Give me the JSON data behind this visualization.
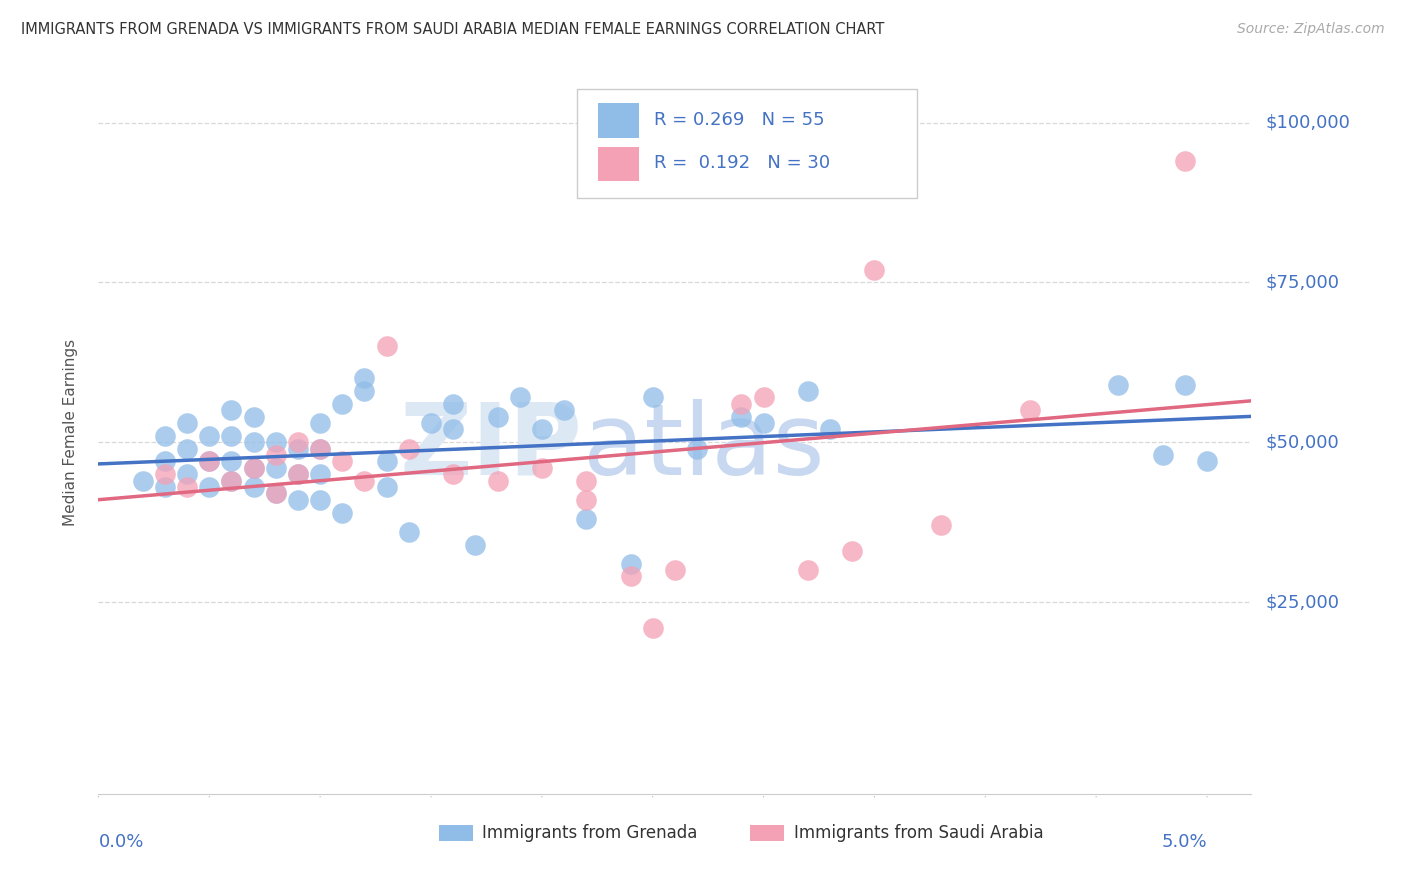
{
  "title": "IMMIGRANTS FROM GRENADA VS IMMIGRANTS FROM SAUDI ARABIA MEDIAN FEMALE EARNINGS CORRELATION CHART",
  "source": "Source: ZipAtlas.com",
  "ylabel": "Median Female Earnings",
  "ytick_values": [
    25000,
    50000,
    75000,
    100000
  ],
  "ytick_labels": [
    "$25,000",
    "$50,000",
    "$75,000",
    "$100,000"
  ],
  "ylim": [
    -5000,
    108000
  ],
  "xlim": [
    0.0,
    0.052
  ],
  "color_grenada": "#90bce8",
  "color_saudi": "#f4a0b5",
  "color_trendline_grenada": "#4472c4",
  "color_trendline_saudi": "#e06880",
  "color_axis_labels": "#4472c4",
  "color_title": "#333333",
  "background_color": "#ffffff",
  "grid_color": "#d8d8d8",
  "watermark_color": "#dce8f7",
  "grenada_x": [
    0.002,
    0.003,
    0.003,
    0.003,
    0.004,
    0.004,
    0.004,
    0.005,
    0.005,
    0.005,
    0.006,
    0.006,
    0.006,
    0.006,
    0.007,
    0.007,
    0.007,
    0.007,
    0.008,
    0.008,
    0.008,
    0.009,
    0.009,
    0.009,
    0.01,
    0.01,
    0.01,
    0.01,
    0.011,
    0.011,
    0.012,
    0.012,
    0.013,
    0.013,
    0.014,
    0.015,
    0.016,
    0.016,
    0.017,
    0.018,
    0.019,
    0.02,
    0.021,
    0.022,
    0.024,
    0.025,
    0.027,
    0.029,
    0.03,
    0.032,
    0.033,
    0.046,
    0.048,
    0.049,
    0.05
  ],
  "grenada_y": [
    44000,
    43000,
    47000,
    51000,
    45000,
    49000,
    53000,
    43000,
    47000,
    51000,
    44000,
    47000,
    51000,
    55000,
    43000,
    46000,
    50000,
    54000,
    42000,
    46000,
    50000,
    41000,
    45000,
    49000,
    41000,
    45000,
    49000,
    53000,
    39000,
    56000,
    58000,
    60000,
    43000,
    47000,
    36000,
    53000,
    52000,
    56000,
    34000,
    54000,
    57000,
    52000,
    55000,
    38000,
    31000,
    57000,
    49000,
    54000,
    53000,
    58000,
    52000,
    59000,
    48000,
    59000,
    47000
  ],
  "saudi_x": [
    0.003,
    0.004,
    0.005,
    0.006,
    0.007,
    0.008,
    0.008,
    0.009,
    0.009,
    0.01,
    0.011,
    0.012,
    0.013,
    0.014,
    0.016,
    0.018,
    0.02,
    0.022,
    0.022,
    0.024,
    0.025,
    0.026,
    0.029,
    0.03,
    0.032,
    0.034,
    0.035,
    0.038,
    0.042,
    0.049
  ],
  "saudi_y": [
    45000,
    43000,
    47000,
    44000,
    46000,
    42000,
    48000,
    45000,
    50000,
    49000,
    47000,
    44000,
    65000,
    49000,
    45000,
    44000,
    46000,
    41000,
    44000,
    29000,
    21000,
    30000,
    56000,
    57000,
    30000,
    33000,
    77000,
    37000,
    55000,
    94000
  ]
}
